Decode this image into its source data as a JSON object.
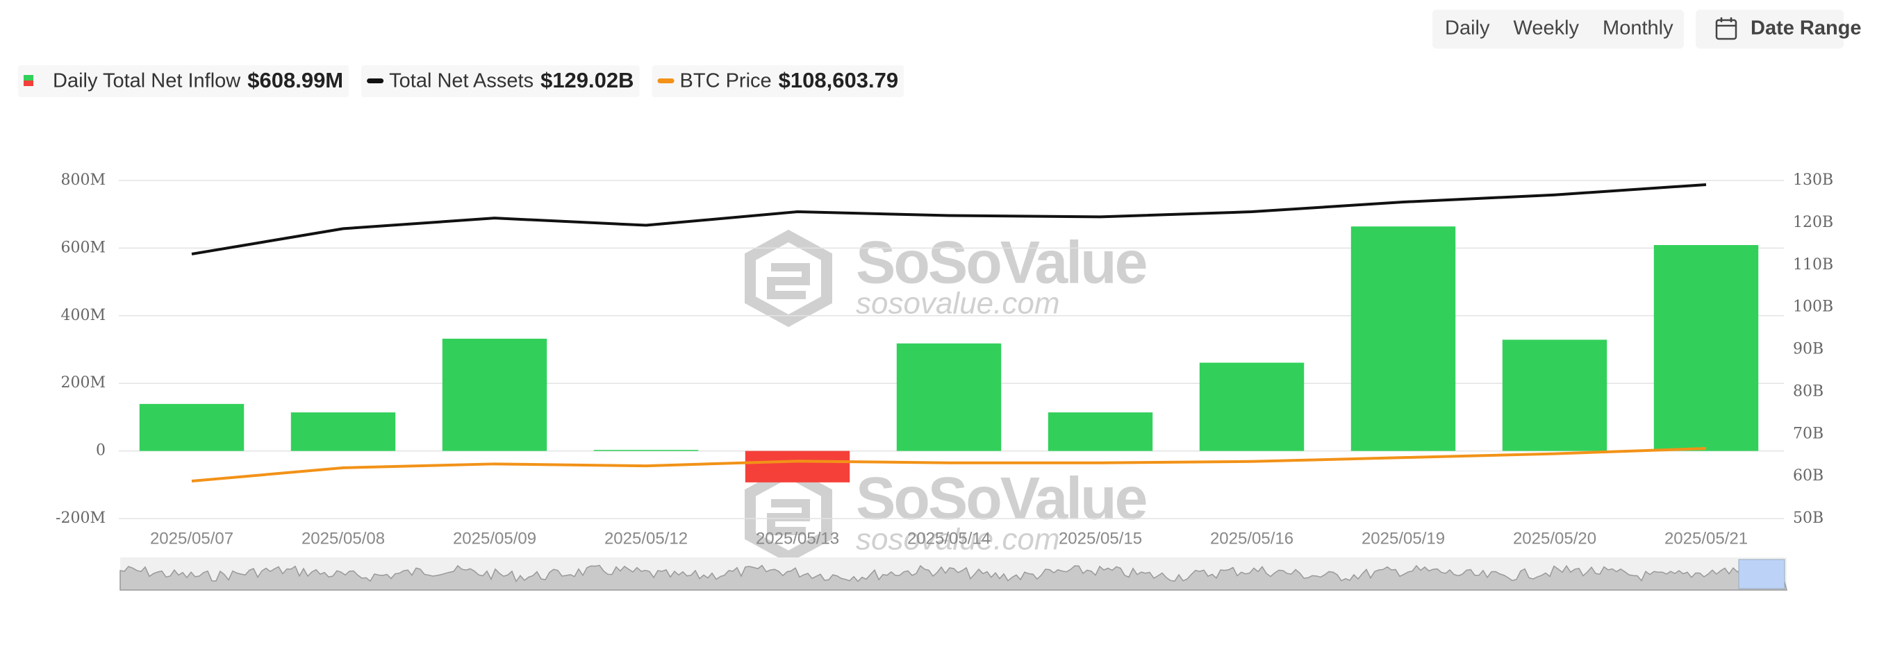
{
  "ui": {
    "periods": [
      "Daily",
      "Weekly",
      "Monthly"
    ],
    "active_period": 0,
    "date_range": "Date Range"
  },
  "watermark": {
    "brand": "SoSoValue",
    "site": "sosovalue.com"
  },
  "chart_data": {
    "type": "bar-line",
    "categories": [
      "2025/05/07",
      "2025/05/08",
      "2025/05/09",
      "2025/05/12",
      "2025/05/13",
      "2025/05/14",
      "2025/05/15",
      "2025/05/16",
      "2025/05/19",
      "2025/05/20",
      "2025/05/21"
    ],
    "ylim": [
      -200,
      800
    ],
    "yticks": [
      {
        "value": -200,
        "label": "-200M"
      },
      0,
      {
        "value": 200,
        "label": "200M"
      },
      {
        "value": 400,
        "label": "400M"
      },
      {
        "value": 600,
        "label": "600M"
      },
      {
        "value": 800,
        "label": "800M"
      }
    ],
    "y2lim": [
      50,
      130
    ],
    "y2ticks": [
      {
        "value": 50,
        "label": "50B"
      },
      {
        "value": 60,
        "label": "60B"
      },
      {
        "value": 70,
        "label": "70B"
      },
      {
        "value": 80,
        "label": "80B"
      },
      {
        "value": 90,
        "label": "90B"
      },
      {
        "value": 100,
        "label": "100B"
      },
      {
        "value": 110,
        "label": "110B"
      },
      {
        "value": 120,
        "label": "120B"
      },
      {
        "value": 130,
        "label": "130B"
      }
    ],
    "grid": true,
    "series": [
      {
        "name": "Daily Total Net Inflow",
        "type": "bar",
        "color": "#32d05a",
        "negative_color": "#f5403a",
        "legend_value": "$608.99M",
        "values": [
          139,
          114,
          332,
          3,
          -93,
          318,
          114,
          261,
          664,
          329,
          608.99
        ]
      },
      {
        "name": "Total Net Assets",
        "type": "line",
        "axis": "y2",
        "color": "#111111",
        "legend_value": "$129.02B",
        "values": [
          112.6,
          118.6,
          121.1,
          119.4,
          122.6,
          121.7,
          121.4,
          122.6,
          124.9,
          126.6,
          129.02
        ]
      },
      {
        "name": "BTC Price",
        "type": "line",
        "axis": "hidden",
        "color": "#f29218",
        "legend_value": "$108,603.79",
        "values": [
          96800,
          101600,
          103000,
          102300,
          104000,
          103400,
          103400,
          103900,
          105300,
          106700,
          108603.79
        ]
      }
    ]
  }
}
